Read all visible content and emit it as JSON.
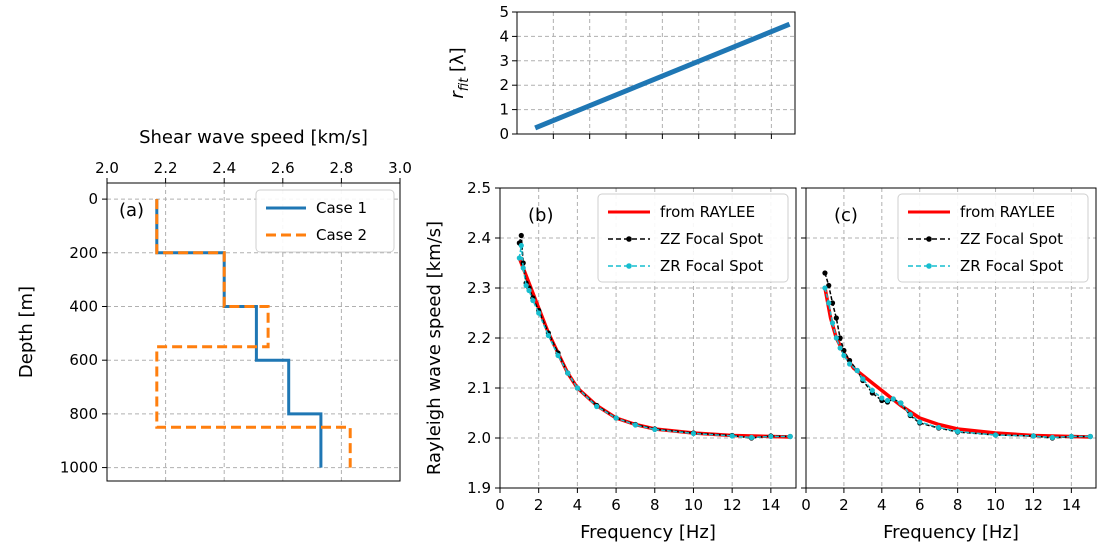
{
  "chart_data": [
    {
      "id": "a",
      "type": "line",
      "panel_label": "(a)",
      "xlabel": "Shear wave speed [km/s]",
      "ylabel": "Depth [m]",
      "xlim": [
        2.0,
        3.0
      ],
      "ylim": [
        1050,
        -60
      ],
      "y_inverted": true,
      "x_axis_position": "top",
      "xticks": [
        "2.0",
        "2.2",
        "2.4",
        "2.6",
        "2.8",
        "3.0"
      ],
      "yticks": [
        "0",
        "200",
        "400",
        "600",
        "800",
        "1000"
      ],
      "grid": true,
      "legend_position": "top-right",
      "series": [
        {
          "name": "Case 1",
          "color": "#1f77b4",
          "style": "solid",
          "points": [
            [
              2.17,
              0
            ],
            [
              2.17,
              200
            ],
            [
              2.4,
              200
            ],
            [
              2.4,
              400
            ],
            [
              2.51,
              400
            ],
            [
              2.51,
              600
            ],
            [
              2.62,
              600
            ],
            [
              2.62,
              800
            ],
            [
              2.73,
              800
            ],
            [
              2.73,
              1000
            ]
          ]
        },
        {
          "name": "Case 2",
          "color": "#ff7f0e",
          "style": "dashed",
          "points": [
            [
              2.17,
              0
            ],
            [
              2.17,
              200
            ],
            [
              2.4,
              200
            ],
            [
              2.4,
              400
            ],
            [
              2.55,
              400
            ],
            [
              2.55,
              550
            ],
            [
              2.17,
              550
            ],
            [
              2.17,
              850
            ],
            [
              2.83,
              850
            ],
            [
              2.83,
              1000
            ]
          ]
        }
      ]
    },
    {
      "id": "top",
      "type": "line",
      "ylabel": "r_fit [λ]",
      "ylabel_main": "r",
      "ylabel_sub": "fit",
      "ylabel_unit": " [λ]",
      "xlim": [
        0,
        15.3
      ],
      "ylim": [
        0,
        5
      ],
      "yticks": [
        "0",
        "1",
        "2",
        "3",
        "4",
        "5"
      ],
      "xtick_values": [
        2,
        4,
        6,
        8,
        10,
        12,
        14
      ],
      "grid": true,
      "series": [
        {
          "name": "",
          "color": "#1f77b4",
          "points": [
            [
              1,
              0.25
            ],
            [
              15,
              4.5
            ]
          ]
        }
      ]
    },
    {
      "id": "b",
      "type": "line",
      "panel_label": "(b)",
      "xlabel": "Frequency [Hz]",
      "ylabel": "Rayleigh wave speed [km/s]",
      "xlim": [
        0,
        15.3
      ],
      "ylim": [
        1.9,
        2.5
      ],
      "xticks": [
        "0",
        "2",
        "4",
        "6",
        "8",
        "10",
        "12",
        "14"
      ],
      "yticks": [
        "1.9",
        "2.0",
        "2.1",
        "2.2",
        "2.3",
        "2.4",
        "2.5"
      ],
      "grid": true,
      "legend_position": "top-right",
      "series": [
        {
          "name": "from RAYLEE",
          "color": "#ff0000",
          "style": "line",
          "points": [
            [
              1.0,
              2.36
            ],
            [
              1.2,
              2.34
            ],
            [
              1.5,
              2.31
            ],
            [
              2.0,
              2.26
            ],
            [
              2.5,
              2.21
            ],
            [
              3.0,
              2.17
            ],
            [
              3.5,
              2.13
            ],
            [
              4.0,
              2.1
            ],
            [
              5.0,
              2.065
            ],
            [
              6.0,
              2.04
            ],
            [
              7.0,
              2.027
            ],
            [
              8.0,
              2.018
            ],
            [
              10.0,
              2.01
            ],
            [
              12.0,
              2.005
            ],
            [
              15.0,
              2.002
            ]
          ]
        },
        {
          "name": "ZZ Focal Spot",
          "color": "#000000",
          "style": "dash-dot-marker",
          "points": [
            [
              1.0,
              2.39
            ],
            [
              1.1,
              2.405
            ],
            [
              1.2,
              2.35
            ],
            [
              1.35,
              2.31
            ],
            [
              1.5,
              2.3
            ],
            [
              1.7,
              2.28
            ],
            [
              2.0,
              2.255
            ],
            [
              2.5,
              2.21
            ],
            [
              3.0,
              2.17
            ],
            [
              3.5,
              2.13
            ],
            [
              4.0,
              2.1
            ],
            [
              5.0,
              2.065
            ],
            [
              6.0,
              2.04
            ],
            [
              7.0,
              2.027
            ],
            [
              8.0,
              2.018
            ],
            [
              10.0,
              2.01
            ],
            [
              12.0,
              2.005
            ],
            [
              13.0,
              2.0
            ],
            [
              14.0,
              2.004
            ],
            [
              15.0,
              2.003
            ]
          ]
        },
        {
          "name": "ZR Focal Spot",
          "color": "#17becf",
          "style": "dash-dot-marker",
          "points": [
            [
              1.0,
              2.36
            ],
            [
              1.1,
              2.385
            ],
            [
              1.2,
              2.34
            ],
            [
              1.35,
              2.305
            ],
            [
              1.5,
              2.295
            ],
            [
              1.7,
              2.275
            ],
            [
              2.0,
              2.25
            ],
            [
              2.5,
              2.205
            ],
            [
              3.0,
              2.165
            ],
            [
              3.5,
              2.13
            ],
            [
              4.0,
              2.1
            ],
            [
              5.0,
              2.063
            ],
            [
              6.0,
              2.04
            ],
            [
              7.0,
              2.026
            ],
            [
              8.0,
              2.017
            ],
            [
              10.0,
              2.009
            ],
            [
              12.0,
              2.004
            ],
            [
              13.0,
              2.001
            ],
            [
              14.0,
              2.003
            ],
            [
              15.0,
              2.003
            ]
          ]
        }
      ]
    },
    {
      "id": "c",
      "type": "line",
      "panel_label": "(c)",
      "xlabel": "Frequency [Hz]",
      "xlim": [
        0,
        15.3
      ],
      "ylim": [
        1.9,
        2.5
      ],
      "xticks": [
        "0",
        "2",
        "4",
        "6",
        "8",
        "10",
        "12",
        "14"
      ],
      "grid": true,
      "legend_position": "top-right",
      "series": [
        {
          "name": "from RAYLEE",
          "color": "#ff0000",
          "style": "line",
          "points": [
            [
              1.0,
              2.3
            ],
            [
              1.3,
              2.24
            ],
            [
              1.6,
              2.2
            ],
            [
              2.0,
              2.17
            ],
            [
              2.5,
              2.14
            ],
            [
              3.0,
              2.125
            ],
            [
              3.5,
              2.11
            ],
            [
              4.0,
              2.095
            ],
            [
              4.5,
              2.08
            ],
            [
              5.0,
              2.065
            ],
            [
              6.0,
              2.04
            ],
            [
              7.0,
              2.027
            ],
            [
              8.0,
              2.018
            ],
            [
              10.0,
              2.01
            ],
            [
              12.0,
              2.005
            ],
            [
              15.0,
              2.002
            ]
          ]
        },
        {
          "name": "ZZ Focal Spot",
          "color": "#000000",
          "style": "dash-dot-marker",
          "points": [
            [
              1.0,
              2.33
            ],
            [
              1.2,
              2.305
            ],
            [
              1.4,
              2.27
            ],
            [
              1.6,
              2.24
            ],
            [
              1.8,
              2.2
            ],
            [
              2.0,
              2.175
            ],
            [
              2.3,
              2.155
            ],
            [
              2.7,
              2.135
            ],
            [
              3.0,
              2.115
            ],
            [
              3.5,
              2.09
            ],
            [
              4.0,
              2.075
            ],
            [
              4.3,
              2.072
            ],
            [
              4.6,
              2.078
            ],
            [
              5.0,
              2.07
            ],
            [
              5.5,
              2.045
            ],
            [
              6.0,
              2.03
            ],
            [
              7.0,
              2.02
            ],
            [
              8.0,
              2.012
            ],
            [
              10.0,
              2.006
            ],
            [
              12.0,
              2.004
            ],
            [
              13.0,
              2.0
            ],
            [
              14.0,
              2.003
            ],
            [
              15.0,
              2.003
            ]
          ]
        },
        {
          "name": "ZR Focal Spot",
          "color": "#17becf",
          "style": "dash-dot-marker",
          "points": [
            [
              1.0,
              2.3
            ],
            [
              1.2,
              2.27
            ],
            [
              1.4,
              2.23
            ],
            [
              1.6,
              2.2
            ],
            [
              1.8,
              2.18
            ],
            [
              2.0,
              2.165
            ],
            [
              2.3,
              2.148
            ],
            [
              2.7,
              2.135
            ],
            [
              3.0,
              2.118
            ],
            [
              3.5,
              2.095
            ],
            [
              4.0,
              2.08
            ],
            [
              4.3,
              2.075
            ],
            [
              4.6,
              2.078
            ],
            [
              5.0,
              2.07
            ],
            [
              5.5,
              2.047
            ],
            [
              6.0,
              2.032
            ],
            [
              7.0,
              2.021
            ],
            [
              8.0,
              2.013
            ],
            [
              10.0,
              2.006
            ],
            [
              12.0,
              2.004
            ],
            [
              13.0,
              2.001
            ],
            [
              14.0,
              2.003
            ],
            [
              15.0,
              2.003
            ]
          ]
        }
      ]
    }
  ]
}
